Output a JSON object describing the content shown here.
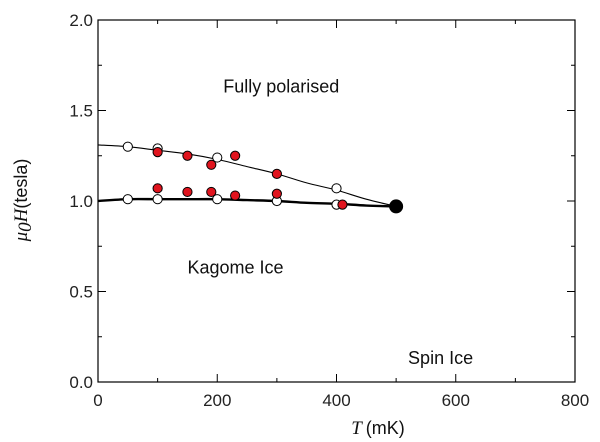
{
  "chart_data": {
    "type": "scatter",
    "xlabel": {
      "symbol": "T",
      "unit": "(mK)"
    },
    "ylabel": {
      "symbol": "μ",
      "subscript": "0",
      "symbol2": "H",
      "unit": "(tesla)"
    },
    "xlim": [
      0,
      800
    ],
    "ylim": [
      0.0,
      2.0
    ],
    "x_ticks": [
      "0",
      "200",
      "400",
      "600",
      "800"
    ],
    "x_tick_values": [
      0,
      200,
      400,
      600,
      800
    ],
    "y_ticks": [
      "0.0",
      "0.5",
      "1.0",
      "1.5",
      "2.0"
    ],
    "y_tick_values": [
      0.0,
      0.5,
      1.0,
      1.5,
      2.0
    ],
    "grid": false,
    "regions": [
      {
        "text": "Fully polarised",
        "x": 210,
        "y": 1.6
      },
      {
        "text": "Kagome Ice",
        "x": 150,
        "y": 0.6
      },
      {
        "text": "Spin Ice",
        "x": 520,
        "y": 0.1
      }
    ],
    "series": [
      {
        "marker": "open-circle",
        "color": "#ffffff",
        "stroke": "#000000",
        "x": [
          50,
          100,
          200,
          400,
          50,
          100,
          200,
          300,
          400
        ],
        "y": [
          1.3,
          1.29,
          1.24,
          1.07,
          1.01,
          1.01,
          1.01,
          1.0,
          0.98
        ]
      },
      {
        "marker": "filled-circle",
        "color": "#e0141e",
        "stroke": "#000000",
        "x": [
          100,
          150,
          190,
          230,
          300,
          100,
          150,
          190,
          230,
          300,
          410
        ],
        "y": [
          1.27,
          1.25,
          1.2,
          1.25,
          1.15,
          1.07,
          1.05,
          1.05,
          1.03,
          1.04,
          0.98
        ]
      },
      {
        "marker": "large-filled-circle",
        "color": "#000000",
        "stroke": "#000000",
        "x": [
          500
        ],
        "y": [
          0.97
        ]
      }
    ],
    "lines": [
      {
        "style": "thin",
        "x": [
          0,
          50,
          100,
          150,
          200,
          250,
          300,
          350,
          400,
          450,
          500
        ],
        "y": [
          1.31,
          1.3,
          1.28,
          1.26,
          1.23,
          1.19,
          1.15,
          1.1,
          1.06,
          1.01,
          0.97
        ]
      },
      {
        "style": "thick",
        "x": [
          0,
          50,
          100,
          150,
          200,
          250,
          300,
          350,
          400,
          450,
          500
        ],
        "y": [
          1.0,
          1.01,
          1.01,
          1.01,
          1.01,
          1.005,
          1.0,
          0.99,
          0.985,
          0.975,
          0.97
        ]
      }
    ]
  }
}
